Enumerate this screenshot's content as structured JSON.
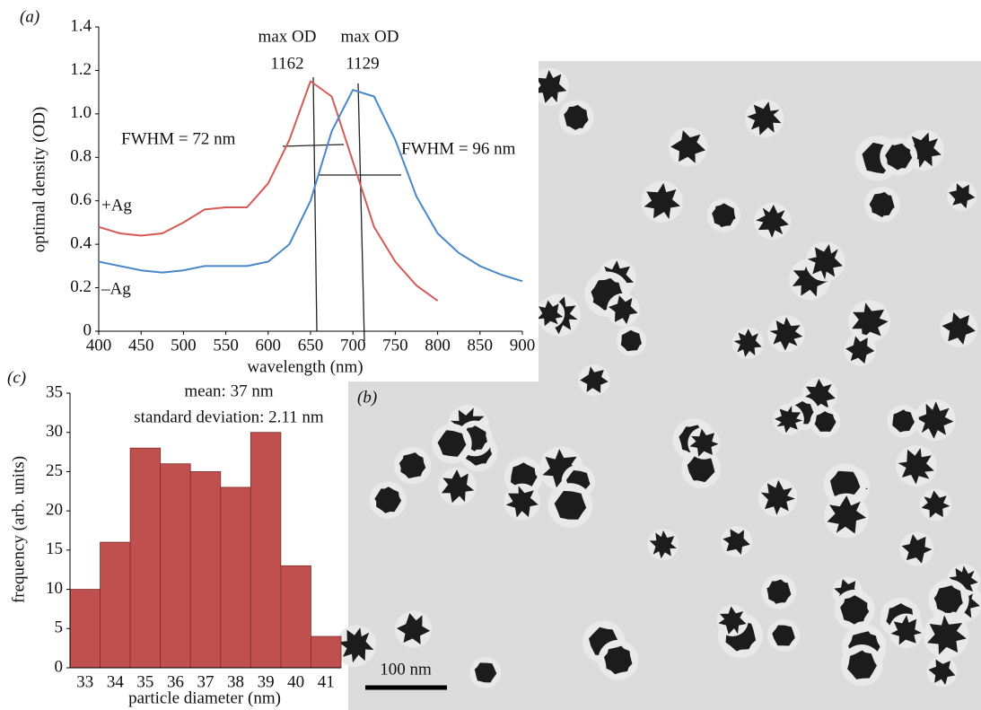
{
  "chart_data": [
    {
      "type": "line",
      "label": "(a)",
      "x": [
        400,
        425,
        450,
        475,
        500,
        525,
        550,
        575,
        600,
        625,
        650,
        675,
        700,
        725,
        750,
        775,
        800,
        825,
        850,
        875,
        900
      ],
      "xlim": [
        400,
        900
      ],
      "xticks": [
        400,
        450,
        500,
        550,
        600,
        650,
        700,
        750,
        800,
        850,
        900
      ],
      "ylim": [
        0,
        1.4
      ],
      "yticks": [
        0,
        0.2,
        0.4,
        0.6,
        0.8,
        {
          "value": 1,
          "label": "1.0"
        },
        1.2,
        1.4
      ],
      "xlabel": "wavelength (nm)",
      "ylabel": "optimal density (OD)",
      "series": [
        {
          "name": "+Ag",
          "color": "#d45a55",
          "values": [
            0.48,
            0.45,
            0.44,
            0.45,
            0.5,
            0.56,
            0.57,
            0.57,
            0.68,
            0.88,
            1.15,
            1.08,
            0.78,
            0.48,
            0.32,
            0.21,
            0.14,
            null,
            null,
            null,
            null
          ]
        },
        {
          "name": "–Ag",
          "color": "#4a86c8",
          "values": [
            0.32,
            0.3,
            0.28,
            0.27,
            0.28,
            0.3,
            0.3,
            0.3,
            0.32,
            0.4,
            0.6,
            0.92,
            1.11,
            1.08,
            0.88,
            0.62,
            0.45,
            0.36,
            0.3,
            0.26,
            0.23
          ]
        }
      ],
      "annotations": [
        "max OD",
        "1162",
        "max OD",
        "1129",
        "FWHM = 72 nm",
        "FWHM = 96 nm"
      ]
    },
    {
      "type": "bar",
      "label": "(c)",
      "categories": [
        "33",
        "34",
        "35",
        "36",
        "37",
        "38",
        "39",
        "40",
        "41"
      ],
      "values": [
        10,
        16,
        28,
        26,
        25,
        23,
        30,
        13,
        4
      ],
      "color": "#c0504d",
      "ylim": [
        0,
        35
      ],
      "yticks": [
        0,
        5,
        10,
        15,
        20,
        25,
        30,
        35
      ],
      "xlabel": "particle diameter (nm)",
      "ylabel": "frequency (arb. units)",
      "annotations": [
        "mean: 37 nm",
        "standard deviation: 2.11 nm"
      ]
    }
  ],
  "image": {
    "label": "(b)",
    "scale_bar": "100 nm"
  }
}
